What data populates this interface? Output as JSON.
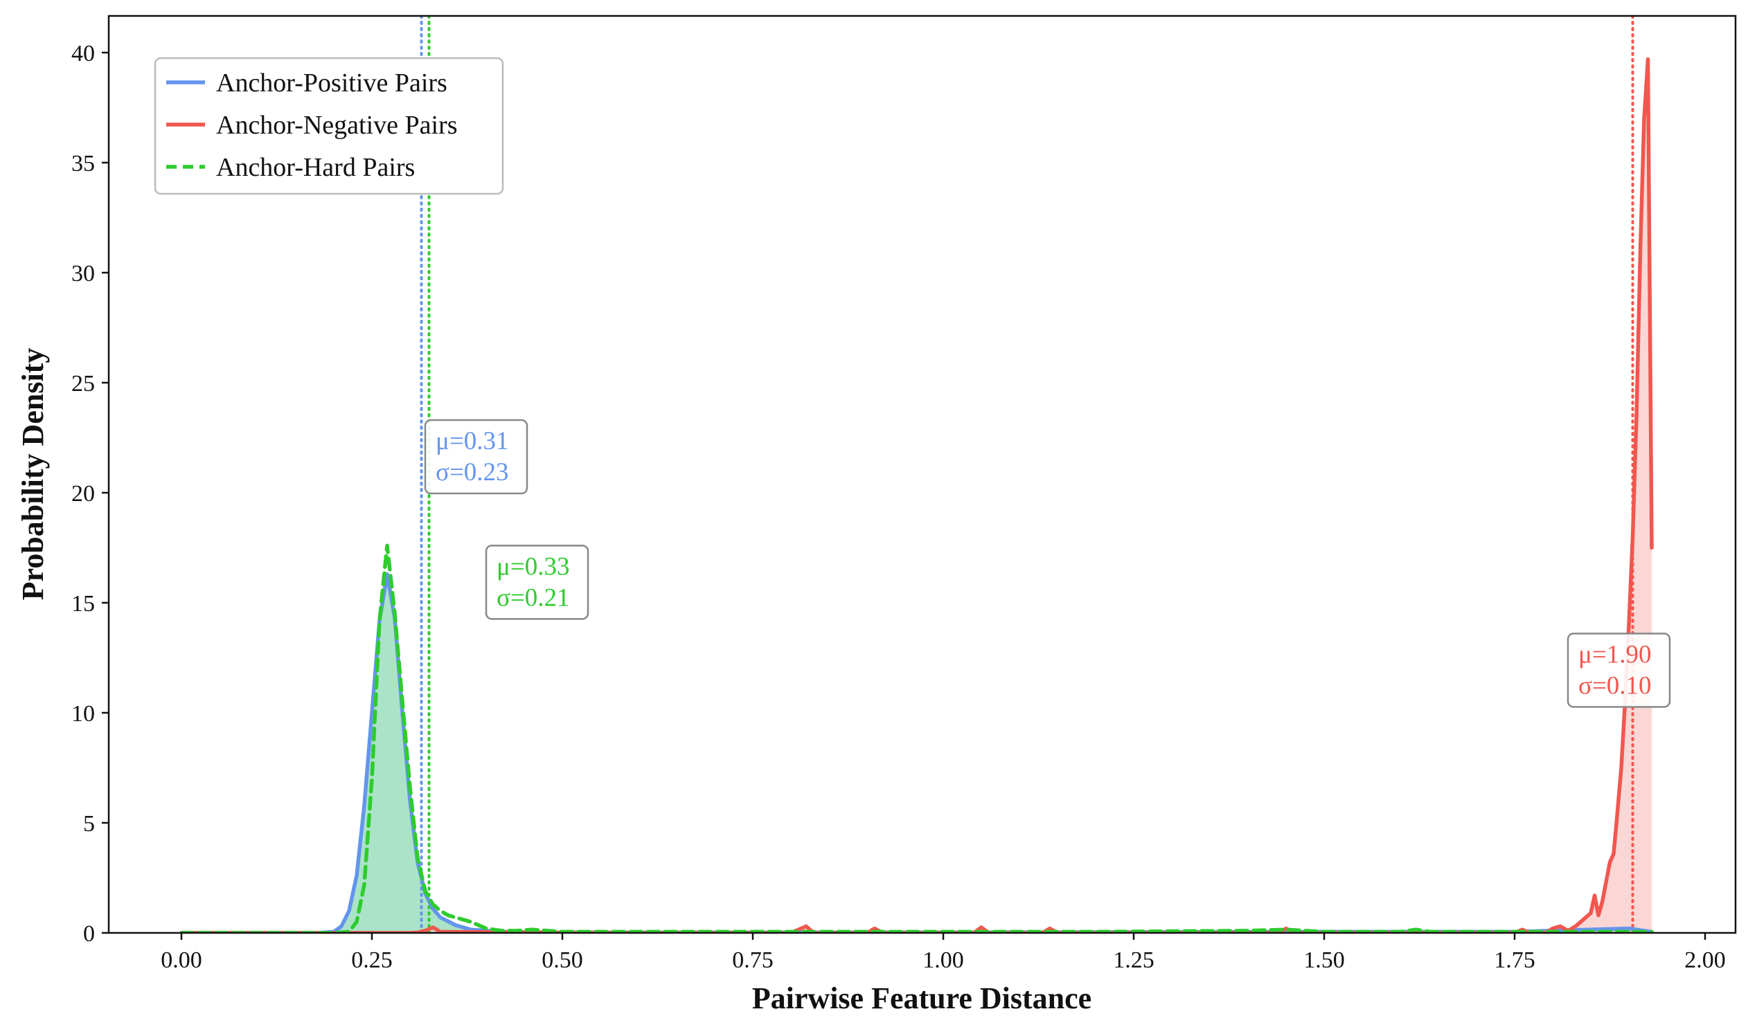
{
  "chart_data": {
    "type": "line",
    "xlabel": "Pairwise Feature Distance",
    "ylabel": "Probability Density",
    "xlim": [
      -0.1,
      2.03
    ],
    "ylim": [
      0,
      41.5
    ],
    "xticks": [
      0.0,
      0.25,
      0.5,
      0.75,
      1.0,
      1.25,
      1.5,
      1.75,
      2.0
    ],
    "xtick_labels": [
      "0.00",
      "0.25",
      "0.50",
      "0.75",
      "1.00",
      "1.25",
      "1.50",
      "1.75",
      "2.00"
    ],
    "yticks": [
      0,
      5,
      10,
      15,
      20,
      25,
      30,
      35,
      40
    ],
    "ytick_labels": [
      "0",
      "5",
      "10",
      "15",
      "20",
      "25",
      "30",
      "35",
      "40"
    ],
    "grid": false,
    "legend_position": "top-left",
    "series": [
      {
        "name": "Anchor-Positive Pairs",
        "color": "#6495ED",
        "style": "solid",
        "fill": "#8FD9B6",
        "mean_line_x": 0.315,
        "x": [
          0.0,
          0.18,
          0.2,
          0.21,
          0.22,
          0.23,
          0.24,
          0.25,
          0.26,
          0.27,
          0.28,
          0.29,
          0.3,
          0.31,
          0.32,
          0.33,
          0.34,
          0.36,
          0.38,
          0.42,
          0.5,
          0.7,
          1.0,
          1.5,
          1.75,
          1.9,
          1.93
        ],
        "y": [
          0,
          0,
          0.05,
          0.3,
          1.0,
          2.6,
          5.8,
          10.0,
          14.2,
          16.3,
          14.3,
          10.0,
          6.0,
          3.2,
          1.8,
          1.1,
          0.7,
          0.35,
          0.15,
          0.05,
          0.02,
          0.02,
          0.02,
          0.05,
          0.05,
          0.2,
          0.05
        ]
      },
      {
        "name": "Anchor-Negative Pairs",
        "color": "#F0574F",
        "style": "solid",
        "fill": "#F8C8C6",
        "mean_line_x": 1.905,
        "x": [
          0.0,
          0.3,
          0.31,
          0.32,
          0.33,
          0.34,
          0.6,
          0.8,
          0.81,
          0.82,
          0.83,
          0.9,
          0.91,
          0.92,
          1.04,
          1.05,
          1.06,
          1.13,
          1.14,
          1.15,
          1.44,
          1.45,
          1.46,
          1.6,
          1.75,
          1.76,
          1.77,
          1.79,
          1.8,
          1.81,
          1.82,
          1.83,
          1.84,
          1.85,
          1.855,
          1.86,
          1.865,
          1.87,
          1.875,
          1.88,
          1.885,
          1.89,
          1.895,
          1.9,
          1.905,
          1.91,
          1.915,
          1.92,
          1.925,
          1.93
        ],
        "y": [
          0,
          0,
          0.02,
          0.1,
          0.25,
          0.05,
          0.0,
          0.0,
          0.15,
          0.3,
          0.0,
          0.0,
          0.2,
          0.0,
          0.0,
          0.25,
          0.0,
          0.0,
          0.2,
          0.0,
          0.0,
          0.2,
          0.0,
          0.0,
          0.0,
          0.15,
          0.0,
          0.0,
          0.2,
          0.3,
          0.1,
          0.3,
          0.6,
          0.9,
          1.7,
          0.8,
          1.4,
          2.3,
          3.2,
          3.6,
          5.5,
          7.5,
          10.5,
          14.0,
          18.0,
          23.5,
          31.0,
          37.0,
          39.7,
          17.5
        ]
      },
      {
        "name": "Anchor-Hard Pairs",
        "color": "#2ECC2E",
        "style": "dashed",
        "fill": "",
        "mean_line_x": 0.325,
        "x": [
          0.0,
          0.2,
          0.22,
          0.23,
          0.24,
          0.25,
          0.26,
          0.27,
          0.28,
          0.29,
          0.3,
          0.31,
          0.32,
          0.33,
          0.34,
          0.35,
          0.36,
          0.37,
          0.38,
          0.39,
          0.4,
          0.42,
          0.44,
          0.46,
          0.5,
          0.6,
          0.8,
          1.0,
          1.2,
          1.4,
          1.45,
          1.5,
          1.6,
          1.62,
          1.64,
          1.7,
          1.8,
          1.93
        ],
        "y": [
          0,
          0,
          0.05,
          0.5,
          2.2,
          7.0,
          14.2,
          17.6,
          14.5,
          10.5,
          6.6,
          3.4,
          1.9,
          1.3,
          1.0,
          0.8,
          0.7,
          0.6,
          0.5,
          0.35,
          0.2,
          0.1,
          0.1,
          0.15,
          0.05,
          0.05,
          0.05,
          0.05,
          0.05,
          0.1,
          0.15,
          0.05,
          0.05,
          0.15,
          0.05,
          0.05,
          0.05,
          0.05
        ]
      }
    ],
    "annotations": [
      {
        "line1": "μ=0.31",
        "line2": "σ=0.23",
        "color": "#6495ED",
        "x": 0.32,
        "y": 23.3
      },
      {
        "line1": "μ=0.33",
        "line2": "σ=0.21",
        "color": "#2ECC2E",
        "x": 0.4,
        "y": 17.6
      },
      {
        "line1": "μ=1.90",
        "line2": "σ=0.10",
        "color": "#F0574F",
        "x": 1.82,
        "y": 13.6
      }
    ]
  }
}
